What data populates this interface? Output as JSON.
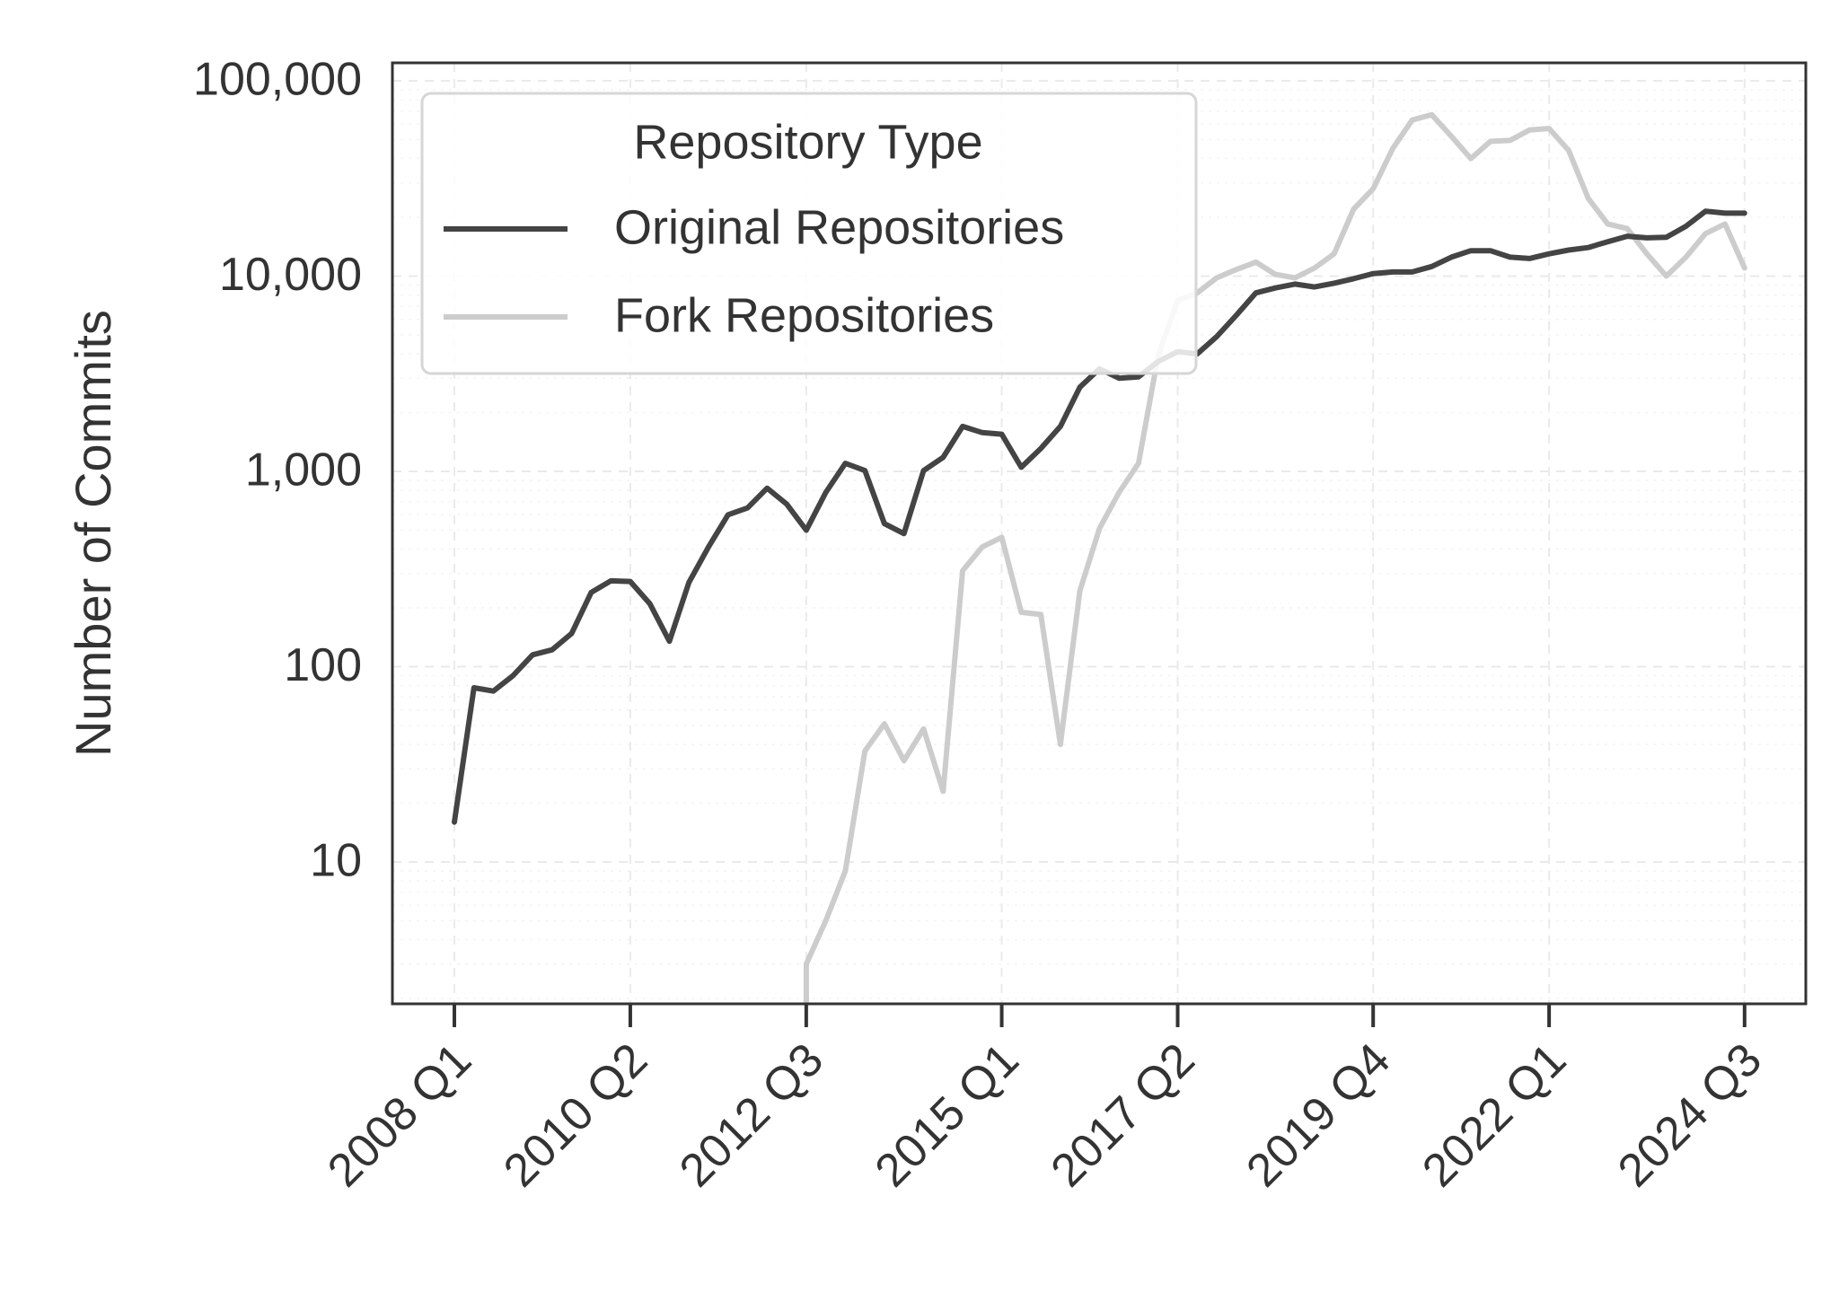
{
  "chart_data": {
    "type": "line",
    "title": "",
    "xlabel": "",
    "ylabel": "Number of Commits",
    "yscale": "log",
    "ylim": [
      1.8,
      100000
    ],
    "grid": true,
    "legend": {
      "title": "Repository Type",
      "placement": "top-left"
    },
    "x_tick_labels": [
      "2008 Q1",
      "2010 Q2",
      "2012 Q3",
      "2015 Q1",
      "2017 Q2",
      "2019 Q4",
      "2022 Q1",
      "2024 Q3"
    ],
    "y_tick_labels": [
      "100,000",
      "10,000",
      "1,000",
      "100",
      "10"
    ],
    "colors": {
      "original": "#444444",
      "fork": "#cccccc"
    },
    "series": [
      {
        "name": "Original Repositories",
        "color": "#444444",
        "x": [
          "2008 Q1",
          "2008 Q2",
          "2008 Q3",
          "2008 Q4",
          "2009 Q1",
          "2009 Q2",
          "2009 Q3",
          "2009 Q4",
          "2010 Q1",
          "2010 Q2",
          "2010 Q3",
          "2010 Q4",
          "2011 Q1",
          "2011 Q2",
          "2011 Q3",
          "2011 Q4",
          "2012 Q1",
          "2012 Q2",
          "2012 Q3",
          "2012 Q4",
          "2013 Q1",
          "2013 Q2",
          "2013 Q3",
          "2013 Q4",
          "2014 Q1",
          "2014 Q2",
          "2014 Q3",
          "2014 Q4",
          "2015 Q1",
          "2015 Q2",
          "2015 Q3",
          "2015 Q4",
          "2016 Q1",
          "2016 Q2",
          "2016 Q3",
          "2016 Q4",
          "2017 Q1",
          "2017 Q2",
          "2017 Q3",
          "2017 Q4",
          "2018 Q1",
          "2018 Q2",
          "2018 Q3",
          "2018 Q4",
          "2019 Q1",
          "2019 Q2",
          "2019 Q3",
          "2019 Q4",
          "2020 Q1",
          "2020 Q2",
          "2020 Q3",
          "2020 Q4",
          "2021 Q1",
          "2021 Q2",
          "2021 Q3",
          "2021 Q4",
          "2022 Q1",
          "2022 Q2",
          "2022 Q3",
          "2022 Q4",
          "2023 Q1",
          "2023 Q2",
          "2023 Q3",
          "2023 Q4",
          "2024 Q1",
          "2024 Q2",
          "2024 Q3"
        ],
        "values": [
          16,
          78,
          75,
          90,
          115,
          122,
          148,
          240,
          275,
          273,
          210,
          135,
          270,
          410,
          600,
          650,
          820,
          680,
          500,
          780,
          1100,
          1010,
          540,
          480,
          1010,
          1180,
          1700,
          1580,
          1550,
          1050,
          1310,
          1700,
          2700,
          3350,
          3000,
          3050,
          3650,
          4100,
          4000,
          4900,
          6300,
          8200,
          8700,
          9100,
          8800,
          9200,
          9700,
          10300,
          10500,
          10500,
          11200,
          12500,
          13500,
          13500,
          12500,
          12300,
          13000,
          13600,
          14000,
          15000,
          16000,
          15700,
          15800,
          18000,
          21500,
          21000,
          21000
        ]
      },
      {
        "name": "Fork Repositories",
        "color": "#cccccc",
        "x": [
          "2012 Q3",
          "2012 Q3",
          "2012 Q4",
          "2013 Q1",
          "2013 Q2",
          "2013 Q3",
          "2013 Q4",
          "2014 Q1",
          "2014 Q2",
          "2014 Q3",
          "2014 Q4",
          "2015 Q1",
          "2015 Q2",
          "2015 Q3",
          "2015 Q4",
          "2016 Q1",
          "2016 Q2",
          "2016 Q3",
          "2016 Q4",
          "2017 Q1",
          "2017 Q2",
          "2017 Q3",
          "2017 Q4",
          "2018 Q1",
          "2018 Q2",
          "2018 Q3",
          "2018 Q4",
          "2019 Q1",
          "2019 Q2",
          "2019 Q3",
          "2019 Q4",
          "2020 Q1",
          "2020 Q2",
          "2020 Q3",
          "2020 Q4",
          "2021 Q1",
          "2021 Q2",
          "2021 Q3",
          "2021 Q4",
          "2022 Q1",
          "2022 Q2",
          "2022 Q3",
          "2022 Q4",
          "2023 Q1",
          "2023 Q2",
          "2023 Q3",
          "2023 Q4",
          "2024 Q1",
          "2024 Q2",
          "2024 Q3"
        ],
        "values": [
          1.8,
          3,
          5,
          9,
          37,
          51,
          33,
          48,
          23,
          310,
          410,
          460,
          190,
          185,
          40,
          245,
          510,
          780,
          1100,
          3900,
          7500,
          8200,
          9800,
          10800,
          11800,
          10200,
          9800,
          11000,
          13000,
          22000,
          28000,
          45000,
          63000,
          67000,
          52000,
          40000,
          49000,
          49500,
          56000,
          57000,
          44000,
          25000,
          18500,
          17500,
          13000,
          10000,
          12500,
          16500,
          18500,
          11000
        ]
      }
    ]
  }
}
